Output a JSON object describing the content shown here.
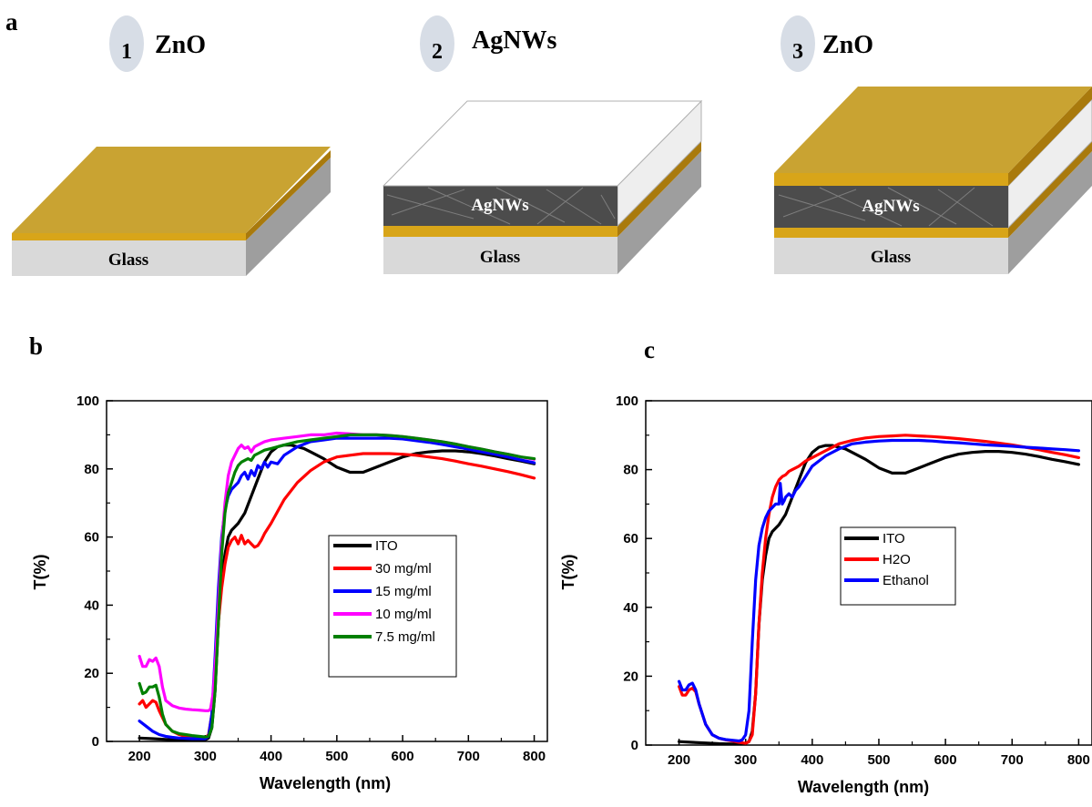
{
  "panels": {
    "a": "a",
    "b": "b",
    "c": "c"
  },
  "schematic": {
    "steps": [
      {
        "number": "1",
        "label": "ZnO"
      },
      {
        "number": "2",
        "label": "AgNWs"
      },
      {
        "number": "3",
        "label": "ZnO"
      }
    ],
    "glass_label": "Glass",
    "agnw_label": "AgNWs",
    "colors": {
      "zno_top": "#c9a332",
      "zno_edge": "#a97a0d",
      "zno_side": "#d8a519",
      "glass_front": "#d9d9d9",
      "glass_side": "#9e9e9e",
      "agnw": "#4c4c4c",
      "step_circle": "#d7dde6"
    }
  },
  "chart_data": [
    {
      "type": "line",
      "panel": "b",
      "xlabel": "Wavelength (nm)",
      "ylabel": "T(%)",
      "xlim": [
        150,
        820
      ],
      "ylim": [
        0,
        100
      ],
      "xticks": [
        200,
        300,
        400,
        500,
        600,
        700,
        800
      ],
      "yticks": [
        0,
        20,
        40,
        60,
        80,
        100
      ],
      "legend_position": "center-right",
      "series": [
        {
          "name": "ITO",
          "color": "#000000",
          "x": [
            200,
            220,
            240,
            260,
            280,
            300,
            305,
            310,
            315,
            320,
            325,
            330,
            335,
            340,
            350,
            360,
            370,
            380,
            390,
            400,
            410,
            420,
            430,
            440,
            450,
            460,
            480,
            500,
            520,
            540,
            560,
            580,
            600,
            620,
            640,
            660,
            680,
            700,
            720,
            740,
            760,
            780,
            800
          ],
          "y": [
            1,
            0.8,
            0.6,
            0.4,
            0.3,
            0.5,
            1,
            4,
            15,
            35,
            48,
            55,
            60,
            62,
            64,
            67,
            72,
            77,
            82,
            85,
            86.5,
            87,
            87,
            86.5,
            86,
            85,
            83,
            80.5,
            79,
            79,
            80.5,
            82,
            83.5,
            84.5,
            85,
            85.3,
            85.3,
            85,
            84.5,
            83.8,
            83,
            82.3,
            81.5
          ]
        },
        {
          "name": "30 mg/ml",
          "color": "#ff0000",
          "x": [
            200,
            205,
            210,
            215,
            220,
            225,
            230,
            240,
            250,
            260,
            270,
            280,
            290,
            300,
            305,
            310,
            315,
            320,
            325,
            330,
            335,
            340,
            345,
            350,
            355,
            360,
            365,
            370,
            375,
            380,
            385,
            390,
            400,
            410,
            420,
            440,
            460,
            480,
            500,
            520,
            540,
            560,
            580,
            600,
            620,
            640,
            660,
            680,
            700,
            720,
            740,
            760,
            780,
            800
          ],
          "y": [
            11,
            12,
            10,
            11,
            12,
            11.5,
            9,
            5,
            3,
            2,
            1.5,
            1.2,
            1,
            1,
            2,
            8,
            20,
            35,
            45,
            52,
            57,
            59,
            60,
            58,
            60.5,
            58,
            59,
            58,
            57,
            57.5,
            59,
            61,
            64,
            67.5,
            71,
            76,
            79.5,
            82,
            83.5,
            84,
            84.5,
            84.5,
            84.5,
            84.3,
            84,
            83.5,
            83,
            82.3,
            81.5,
            80.8,
            80,
            79.2,
            78.3,
            77.3
          ]
        },
        {
          "name": "15 mg/ml",
          "color": "#0000ff",
          "x": [
            200,
            210,
            220,
            230,
            240,
            250,
            260,
            280,
            300,
            305,
            310,
            315,
            320,
            325,
            330,
            335,
            340,
            345,
            350,
            355,
            360,
            365,
            370,
            375,
            380,
            385,
            390,
            395,
            400,
            410,
            420,
            440,
            460,
            480,
            500,
            520,
            540,
            560,
            580,
            600,
            620,
            640,
            660,
            680,
            700,
            720,
            740,
            760,
            780,
            800
          ],
          "y": [
            6,
            4.5,
            3,
            2,
            1.5,
            1.2,
            1,
            0.8,
            0.8,
            1.5,
            8,
            25,
            45,
            60,
            68,
            72,
            74,
            75,
            76,
            78,
            79,
            77,
            79.5,
            78,
            81,
            80,
            82,
            80.5,
            82,
            81.5,
            84,
            86.5,
            88,
            88.5,
            89,
            89,
            89,
            89,
            89,
            88.8,
            88.3,
            87.8,
            87.2,
            86.5,
            85.8,
            85,
            84.3,
            83.5,
            82.6,
            81.8
          ]
        },
        {
          "name": "10 mg/ml",
          "color": "#ff00ff",
          "x": [
            200,
            205,
            210,
            215,
            220,
            225,
            230,
            235,
            240,
            250,
            260,
            270,
            280,
            290,
            300,
            305,
            308,
            312,
            316,
            320,
            325,
            330,
            335,
            340,
            345,
            350,
            355,
            360,
            365,
            370,
            375,
            380,
            390,
            400,
            420,
            440,
            460,
            480,
            500,
            520,
            540,
            560,
            580,
            600,
            620,
            640,
            660,
            680,
            700,
            720,
            740,
            760,
            780,
            800
          ],
          "y": [
            25,
            22,
            22,
            24,
            23.5,
            24.5,
            22,
            16,
            12,
            10.5,
            9.8,
            9.5,
            9.3,
            9.2,
            9,
            9,
            9.5,
            14,
            25,
            40,
            58,
            70,
            78,
            82,
            84,
            86,
            87,
            86,
            86.5,
            85,
            86.5,
            87,
            88,
            88.5,
            89,
            89.5,
            90,
            90,
            90.5,
            90.3,
            90,
            90,
            89.8,
            89.5,
            89,
            88.5,
            88,
            87.3,
            86.5,
            85.8,
            85,
            84.3,
            83.5,
            82.8
          ]
        },
        {
          "name": "7.5 mg/ml",
          "color": "#008000",
          "x": [
            200,
            205,
            210,
            215,
            220,
            225,
            230,
            235,
            240,
            250,
            260,
            270,
            280,
            290,
            300,
            305,
            310,
            315,
            320,
            325,
            330,
            335,
            340,
            345,
            350,
            355,
            360,
            365,
            370,
            375,
            380,
            390,
            400,
            420,
            440,
            460,
            480,
            500,
            520,
            540,
            560,
            580,
            600,
            620,
            640,
            660,
            680,
            700,
            720,
            740,
            760,
            780,
            800
          ],
          "y": [
            17,
            14,
            14.5,
            16,
            16,
            16.5,
            13,
            8,
            5,
            3,
            2.3,
            2,
            1.7,
            1.5,
            1.3,
            1.5,
            4,
            15,
            35,
            55,
            67,
            73,
            76,
            79,
            81,
            82,
            82.5,
            83,
            82.5,
            84,
            84.5,
            85.5,
            86,
            87,
            88,
            88.5,
            89,
            89.5,
            90,
            90,
            90,
            89.8,
            89.5,
            89,
            88.5,
            88,
            87.3,
            86.5,
            85.8,
            85,
            84.3,
            83.5,
            83
          ]
        }
      ]
    },
    {
      "type": "line",
      "panel": "c",
      "xlabel": "Wavelength (nm)",
      "ylabel": "T(%)",
      "xlim": [
        150,
        820
      ],
      "ylim": [
        0,
        100
      ],
      "xticks": [
        200,
        300,
        400,
        500,
        600,
        700,
        800
      ],
      "yticks": [
        0,
        20,
        40,
        60,
        80,
        100
      ],
      "legend_position": "center",
      "series": [
        {
          "name": "ITO",
          "color": "#000000",
          "x": [
            200,
            220,
            240,
            260,
            280,
            300,
            305,
            310,
            315,
            320,
            325,
            330,
            335,
            340,
            350,
            360,
            370,
            380,
            390,
            400,
            410,
            420,
            430,
            440,
            450,
            460,
            480,
            500,
            520,
            540,
            560,
            580,
            600,
            620,
            640,
            660,
            680,
            700,
            720,
            740,
            760,
            780,
            800
          ],
          "y": [
            1,
            0.8,
            0.6,
            0.4,
            0.3,
            0.5,
            1,
            4,
            15,
            35,
            48,
            55,
            60,
            62,
            64,
            67,
            72,
            77,
            82,
            85,
            86.5,
            87,
            87,
            86.5,
            86,
            85,
            83,
            80.5,
            79,
            79,
            80.5,
            82,
            83.5,
            84.5,
            85,
            85.3,
            85.3,
            85,
            84.5,
            83.8,
            83,
            82.3,
            81.5
          ]
        },
        {
          "name": "H2O",
          "color": "#ff0000",
          "x": [
            200,
            205,
            210,
            215,
            220,
            225,
            230,
            240,
            250,
            260,
            270,
            280,
            290,
            300,
            305,
            310,
            315,
            320,
            325,
            330,
            335,
            340,
            345,
            350,
            355,
            360,
            365,
            370,
            375,
            380,
            390,
            400,
            420,
            440,
            460,
            480,
            500,
            520,
            540,
            560,
            580,
            600,
            620,
            640,
            660,
            680,
            700,
            720,
            740,
            760,
            780,
            800
          ],
          "y": [
            17,
            14.5,
            14.5,
            16,
            16.5,
            15.5,
            12,
            6,
            3,
            2,
            1.5,
            1.2,
            0.8,
            0.5,
            1,
            3,
            15,
            35,
            50,
            60,
            67,
            72,
            75,
            77,
            78,
            78.5,
            79.5,
            80,
            80.5,
            81,
            82.5,
            83.5,
            85.5,
            87.5,
            88.5,
            89.2,
            89.6,
            89.8,
            90,
            89.8,
            89.6,
            89.3,
            89,
            88.6,
            88.2,
            87.7,
            87.2,
            86.5,
            85.8,
            85,
            84.3,
            83.5
          ]
        },
        {
          "name": "Ethanol",
          "color": "#0000ff",
          "x": [
            200,
            205,
            210,
            215,
            220,
            225,
            230,
            240,
            250,
            260,
            270,
            280,
            290,
            295,
            300,
            305,
            310,
            315,
            320,
            325,
            330,
            335,
            340,
            345,
            350,
            352,
            355,
            358,
            360,
            365,
            370,
            375,
            380,
            390,
            400,
            420,
            440,
            460,
            480,
            500,
            520,
            540,
            560,
            580,
            600,
            620,
            640,
            660,
            680,
            700,
            720,
            740,
            760,
            780,
            800
          ],
          "y": [
            18.5,
            16,
            16,
            17.5,
            18,
            16,
            12,
            6,
            3,
            2,
            1.6,
            1.4,
            1.2,
            1.5,
            3,
            10,
            30,
            48,
            58,
            63,
            66,
            68,
            69,
            70,
            70,
            76,
            70,
            71,
            72,
            73,
            72,
            74,
            75,
            78,
            81,
            84,
            86,
            87.5,
            88,
            88.3,
            88.5,
            88.5,
            88.5,
            88.3,
            88,
            87.8,
            87.5,
            87.2,
            87,
            86.8,
            86.5,
            86.3,
            86,
            85.8,
            85.5
          ]
        }
      ]
    }
  ]
}
